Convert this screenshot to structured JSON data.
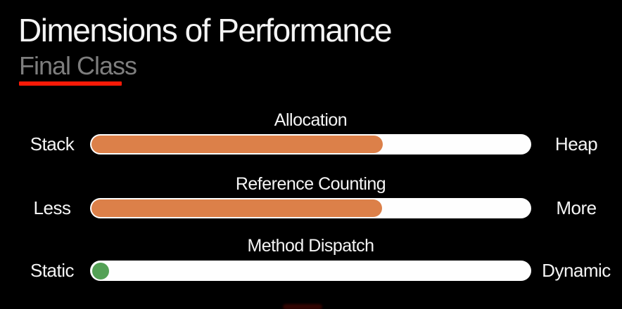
{
  "slide": {
    "title": "Dimensions of Performance",
    "subtitle": "Final Class"
  },
  "colors": {
    "background": "#000000",
    "title-white": "#f4f4f4",
    "subtitle-gray": "#7e7e7e",
    "underline-red": "#fb1a07",
    "track-white": "#fefefe",
    "accent-orange": "#dc8049",
    "accent-green": "#54a156"
  },
  "sliders": [
    {
      "label": "Allocation",
      "left_label": "Stack",
      "right_label": "Heap",
      "indicator": "bar",
      "fill_color": "#dc8049",
      "fill_percent": 66
    },
    {
      "label": "Reference Counting",
      "left_label": "Less",
      "right_label": "More",
      "indicator": "bar",
      "fill_color": "#dc8049",
      "fill_percent": 65.8
    },
    {
      "label": "Method Dispatch",
      "left_label": "Static",
      "right_label": "Dynamic",
      "indicator": "dot",
      "fill_color": "#54a156",
      "fill_percent": 0
    }
  ]
}
